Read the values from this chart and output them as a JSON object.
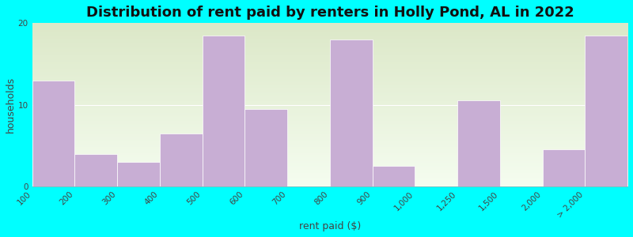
{
  "title": "Distribution of rent paid by renters in Holly Pond, AL in 2022",
  "xlabel": "rent paid ($)",
  "ylabel": "households",
  "background_color": "#00FFFF",
  "plot_bg_color_top": "#dce8c8",
  "plot_bg_color_bottom": "#f5fdf0",
  "bar_color": "#c8aed4",
  "bar_edge_color": "#ffffff",
  "tick_labels": [
    "100",
    "200",
    "300",
    "400",
    "500",
    "600",
    "700",
    "800",
    "900",
    "1,000",
    "1,250",
    "1,500",
    "2,000",
    "> 2,000"
  ],
  "bar_heights": [
    13,
    4,
    3,
    6.5,
    18.5,
    9.5,
    0,
    18,
    2.5,
    0,
    10.5,
    0,
    4.5,
    18.5
  ],
  "ylim": [
    0,
    20
  ],
  "yticks": [
    0,
    10,
    20
  ],
  "title_fontsize": 13,
  "axis_label_fontsize": 9,
  "tick_fontsize": 7.5
}
